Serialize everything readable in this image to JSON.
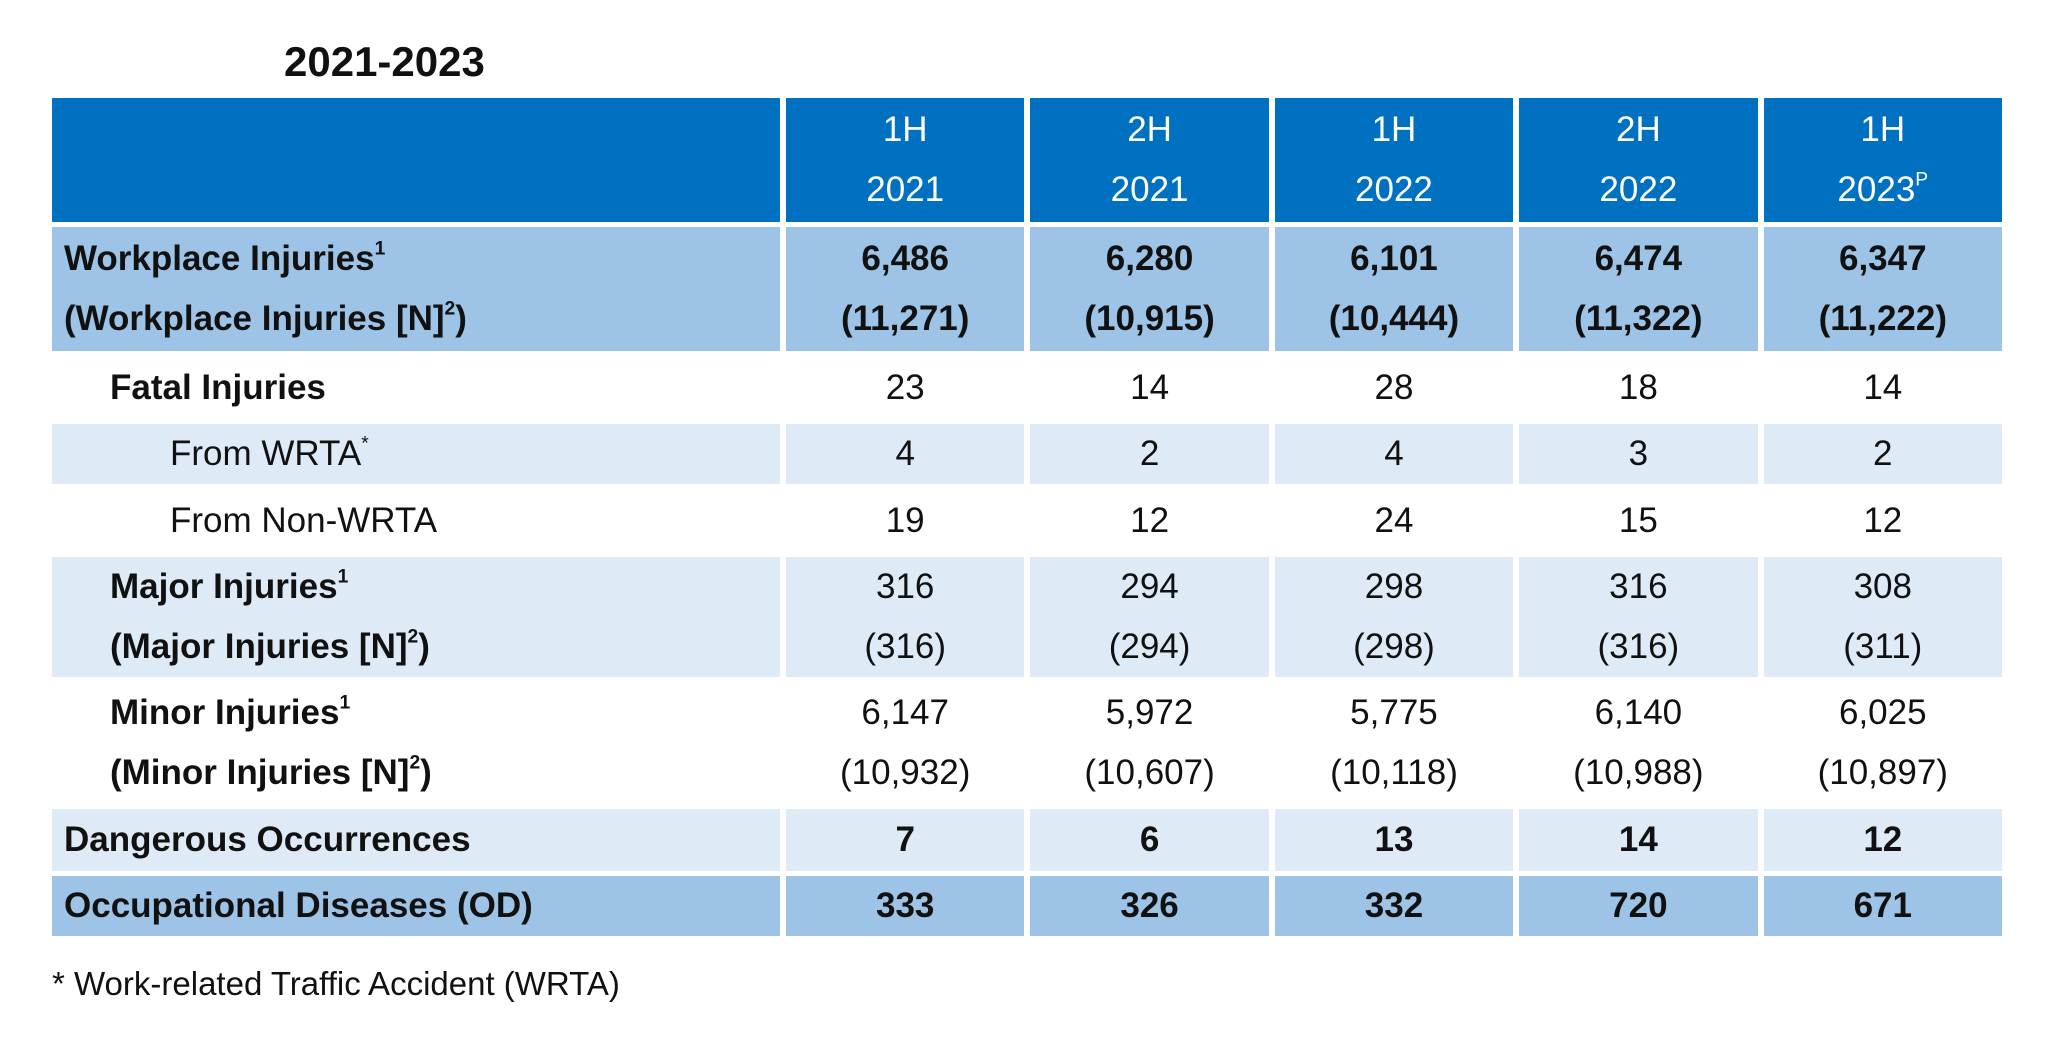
{
  "header": {
    "title": "2021-2023"
  },
  "table": {
    "columns": [
      {
        "period": "1H",
        "year": "2021"
      },
      {
        "period": "2H",
        "year": "2021"
      },
      {
        "period": "1H",
        "year": "2022"
      },
      {
        "period": "2H",
        "year": "2022"
      },
      {
        "period": "1H",
        "year": "2023",
        "sup": "P"
      }
    ],
    "rows": [
      {
        "label": "Workplace Injuries",
        "label_sup": "1",
        "sublabel": "(Workplace Injuries [N]",
        "sublabel_sup": "2",
        "sublabel_end": ")",
        "values": [
          "6,486",
          "6,280",
          "6,101",
          "6,474",
          "6,347"
        ],
        "subvalues": [
          "(11,271)",
          "(10,915)",
          "(10,444)",
          "(11,322)",
          "(11,222)"
        ]
      },
      {
        "label": "Fatal Injuries",
        "values": [
          "23",
          "14",
          "28",
          "18",
          "14"
        ]
      },
      {
        "label": "From WRTA",
        "label_sup": "*",
        "values": [
          "4",
          "2",
          "4",
          "3",
          "2"
        ]
      },
      {
        "label": "From Non-WRTA",
        "values": [
          "19",
          "12",
          "24",
          "15",
          "12"
        ]
      },
      {
        "label": "Major Injuries",
        "label_sup": "1",
        "sublabel": "(Major Injuries [N]",
        "sublabel_sup": "2",
        "sublabel_end": ")",
        "values": [
          "316",
          "294",
          "298",
          "316",
          "308"
        ],
        "subvalues": [
          "(316)",
          "(294)",
          "(298)",
          "(316)",
          "(311)"
        ]
      },
      {
        "label": "Minor Injuries",
        "label_sup": "1",
        "sublabel": "(Minor Injuries [N]",
        "sublabel_sup": "2",
        "sublabel_end": ")",
        "values": [
          "6,147",
          "5,972",
          "5,775",
          "6,140",
          "6,025"
        ],
        "subvalues": [
          "(10,932)",
          "(10,607)",
          "(10,118)",
          "(10,988)",
          "(10,897)"
        ]
      },
      {
        "label": "Dangerous Occurrences",
        "values": [
          "7",
          "6",
          "13",
          "14",
          "12"
        ]
      },
      {
        "label": "Occupational Diseases (OD)",
        "values": [
          "333",
          "326",
          "332",
          "720",
          "671"
        ]
      }
    ]
  },
  "footnote": "* Work-related Traffic Accident (WRTA)"
}
